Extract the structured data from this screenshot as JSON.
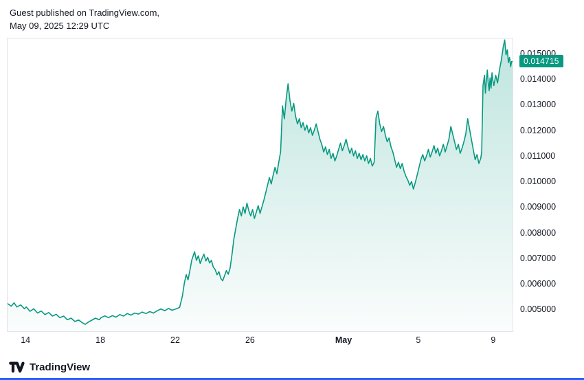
{
  "header": {
    "line1": "Guest published on TradingView.com,",
    "line2": "May 09, 2025 12:29 UTC"
  },
  "footer": {
    "brand": "TradingView",
    "logo_icon": "tradingview-logo"
  },
  "accent_bottom_color": "#2962ff",
  "chart_data": {
    "type": "area",
    "title": "",
    "series_name": "price",
    "line_color": "#089981",
    "fill_top": "rgba(8,153,129,0.26)",
    "fill_bottom": "rgba(8,153,129,0.02)",
    "badge_color": "#089981",
    "last_price": 0.014715,
    "last_price_label": "0.014715",
    "grid": false,
    "legend": "none",
    "ylim": [
      0.00417,
      0.01562
    ],
    "xlim": [
      0,
      27
    ],
    "y_ticks": [
      {
        "value": 0.015,
        "label": "0.015000"
      },
      {
        "value": 0.014,
        "label": "0.014000"
      },
      {
        "value": 0.013,
        "label": "0.013000"
      },
      {
        "value": 0.012,
        "label": "0.012000"
      },
      {
        "value": 0.011,
        "label": "0.011000"
      },
      {
        "value": 0.01,
        "label": "0.010000"
      },
      {
        "value": 0.009,
        "label": "0.009000"
      },
      {
        "value": 0.008,
        "label": "0.008000"
      },
      {
        "value": 0.007,
        "label": "0.007000"
      },
      {
        "value": 0.006,
        "label": "0.006000"
      },
      {
        "value": 0.005,
        "label": "0.005000"
      }
    ],
    "x_ticks": [
      {
        "day": 1,
        "label": "14",
        "bold": false
      },
      {
        "day": 5,
        "label": "18",
        "bold": false
      },
      {
        "day": 9,
        "label": "22",
        "bold": false
      },
      {
        "day": 13,
        "label": "26",
        "bold": false
      },
      {
        "day": 18,
        "label": "May",
        "bold": true
      },
      {
        "day": 22,
        "label": "5",
        "bold": false
      },
      {
        "day": 26,
        "label": "9",
        "bold": false
      }
    ],
    "points": [
      [
        0,
        0.00525
      ],
      [
        0.2,
        0.00515
      ],
      [
        0.35,
        0.00528
      ],
      [
        0.5,
        0.00512
      ],
      [
        0.7,
        0.0052
      ],
      [
        0.9,
        0.00505
      ],
      [
        1,
        0.00512
      ],
      [
        1.2,
        0.00495
      ],
      [
        1.4,
        0.00505
      ],
      [
        1.6,
        0.00488
      ],
      [
        1.8,
        0.00496
      ],
      [
        2,
        0.00482
      ],
      [
        2.2,
        0.0049
      ],
      [
        2.4,
        0.00476
      ],
      [
        2.6,
        0.00483
      ],
      [
        2.8,
        0.0047
      ],
      [
        3,
        0.00476
      ],
      [
        3.2,
        0.00462
      ],
      [
        3.4,
        0.00468
      ],
      [
        3.6,
        0.00455
      ],
      [
        3.8,
        0.00461
      ],
      [
        4,
        0.0045
      ],
      [
        4.15,
        0.00444
      ],
      [
        4.3,
        0.00452
      ],
      [
        4.5,
        0.0046
      ],
      [
        4.7,
        0.00468
      ],
      [
        4.9,
        0.00462
      ],
      [
        5,
        0.0047
      ],
      [
        5.2,
        0.00477
      ],
      [
        5.4,
        0.0047
      ],
      [
        5.6,
        0.00478
      ],
      [
        5.8,
        0.00472
      ],
      [
        6,
        0.00482
      ],
      [
        6.2,
        0.00476
      ],
      [
        6.4,
        0.00486
      ],
      [
        6.6,
        0.0048
      ],
      [
        6.8,
        0.00488
      ],
      [
        7,
        0.00484
      ],
      [
        7.2,
        0.00492
      ],
      [
        7.4,
        0.00486
      ],
      [
        7.6,
        0.00494
      ],
      [
        7.8,
        0.00488
      ],
      [
        8,
        0.00497
      ],
      [
        8.2,
        0.00504
      ],
      [
        8.4,
        0.00497
      ],
      [
        8.6,
        0.00506
      ],
      [
        8.8,
        0.00499
      ],
      [
        9,
        0.00504
      ],
      [
        9.2,
        0.0051
      ],
      [
        9.35,
        0.00555
      ],
      [
        9.45,
        0.00605
      ],
      [
        9.55,
        0.00638
      ],
      [
        9.65,
        0.00618
      ],
      [
        9.75,
        0.00655
      ],
      [
        9.85,
        0.00695
      ],
      [
        10,
        0.00728
      ],
      [
        10.1,
        0.00694
      ],
      [
        10.2,
        0.00712
      ],
      [
        10.3,
        0.00682
      ],
      [
        10.4,
        0.00702
      ],
      [
        10.5,
        0.00718
      ],
      [
        10.6,
        0.00692
      ],
      [
        10.7,
        0.00706
      ],
      [
        10.8,
        0.00684
      ],
      [
        10.9,
        0.00694
      ],
      [
        11,
        0.00668
      ],
      [
        11.1,
        0.00658
      ],
      [
        11.2,
        0.00638
      ],
      [
        11.3,
        0.0065
      ],
      [
        11.4,
        0.00624
      ],
      [
        11.5,
        0.00614
      ],
      [
        11.6,
        0.00634
      ],
      [
        11.7,
        0.00654
      ],
      [
        11.8,
        0.0064
      ],
      [
        11.9,
        0.00664
      ],
      [
        12,
        0.00718
      ],
      [
        12.1,
        0.00778
      ],
      [
        12.2,
        0.00818
      ],
      [
        12.3,
        0.00858
      ],
      [
        12.4,
        0.00893
      ],
      [
        12.5,
        0.00868
      ],
      [
        12.6,
        0.00903
      ],
      [
        12.7,
        0.00878
      ],
      [
        12.8,
        0.00918
      ],
      [
        12.9,
        0.00888
      ],
      [
        13,
        0.00868
      ],
      [
        13.1,
        0.00893
      ],
      [
        13.2,
        0.00858
      ],
      [
        13.3,
        0.00883
      ],
      [
        13.4,
        0.00908
      ],
      [
        13.5,
        0.00878
      ],
      [
        13.6,
        0.00903
      ],
      [
        13.7,
        0.00928
      ],
      [
        13.8,
        0.00958
      ],
      [
        13.9,
        0.00988
      ],
      [
        14,
        0.01018
      ],
      [
        14.1,
        0.00993
      ],
      [
        14.2,
        0.01028
      ],
      [
        14.3,
        0.01058
      ],
      [
        14.4,
        0.01033
      ],
      [
        14.5,
        0.01078
      ],
      [
        14.6,
        0.01118
      ],
      [
        14.7,
        0.01298
      ],
      [
        14.8,
        0.01248
      ],
      [
        14.9,
        0.01328
      ],
      [
        15,
        0.01385
      ],
      [
        15.1,
        0.01318
      ],
      [
        15.2,
        0.01278
      ],
      [
        15.3,
        0.01308
      ],
      [
        15.4,
        0.01258
      ],
      [
        15.5,
        0.01228
      ],
      [
        15.6,
        0.01248
      ],
      [
        15.7,
        0.01213
      ],
      [
        15.8,
        0.01233
      ],
      [
        15.9,
        0.01203
      ],
      [
        16,
        0.01223
      ],
      [
        16.1,
        0.01193
      ],
      [
        16.2,
        0.01213
      ],
      [
        16.3,
        0.01183
      ],
      [
        16.4,
        0.01203
      ],
      [
        16.5,
        0.01228
      ],
      [
        16.6,
        0.01198
      ],
      [
        16.7,
        0.01168
      ],
      [
        16.8,
        0.01148
      ],
      [
        16.9,
        0.01118
      ],
      [
        17,
        0.01138
      ],
      [
        17.1,
        0.01108
      ],
      [
        17.2,
        0.01128
      ],
      [
        17.3,
        0.01093
      ],
      [
        17.4,
        0.01113
      ],
      [
        17.5,
        0.01083
      ],
      [
        17.6,
        0.01103
      ],
      [
        17.7,
        0.01128
      ],
      [
        17.8,
        0.01153
      ],
      [
        17.9,
        0.01123
      ],
      [
        18,
        0.01143
      ],
      [
        18.1,
        0.01168
      ],
      [
        18.2,
        0.01138
      ],
      [
        18.3,
        0.01113
      ],
      [
        18.4,
        0.01133
      ],
      [
        18.5,
        0.01103
      ],
      [
        18.6,
        0.01123
      ],
      [
        18.7,
        0.01093
      ],
      [
        18.8,
        0.01113
      ],
      [
        18.9,
        0.01088
      ],
      [
        19,
        0.01108
      ],
      [
        19.1,
        0.01083
      ],
      [
        19.2,
        0.01103
      ],
      [
        19.3,
        0.01073
      ],
      [
        19.4,
        0.01093
      ],
      [
        19.5,
        0.01063
      ],
      [
        19.6,
        0.01078
      ],
      [
        19.7,
        0.01252
      ],
      [
        19.8,
        0.01278
      ],
      [
        19.9,
        0.01228
      ],
      [
        20,
        0.01198
      ],
      [
        20.1,
        0.01218
      ],
      [
        20.2,
        0.01183
      ],
      [
        20.3,
        0.01158
      ],
      [
        20.4,
        0.01173
      ],
      [
        20.5,
        0.01138
      ],
      [
        20.6,
        0.01118
      ],
      [
        20.7,
        0.01088
      ],
      [
        20.8,
        0.01058
      ],
      [
        20.9,
        0.01078
      ],
      [
        21,
        0.01053
      ],
      [
        21.1,
        0.01073
      ],
      [
        21.2,
        0.01043
      ],
      [
        21.3,
        0.01023
      ],
      [
        21.4,
        0.01008
      ],
      [
        21.5,
        0.00988
      ],
      [
        21.6,
        0.01003
      ],
      [
        21.7,
        0.00973
      ],
      [
        21.8,
        0.00998
      ],
      [
        21.9,
        0.01028
      ],
      [
        22,
        0.01058
      ],
      [
        22.1,
        0.01088
      ],
      [
        22.2,
        0.01108
      ],
      [
        22.3,
        0.01083
      ],
      [
        22.4,
        0.01103
      ],
      [
        22.5,
        0.01128
      ],
      [
        22.6,
        0.01098
      ],
      [
        22.7,
        0.01118
      ],
      [
        22.8,
        0.01143
      ],
      [
        22.9,
        0.01113
      ],
      [
        23,
        0.01133
      ],
      [
        23.1,
        0.01103
      ],
      [
        23.2,
        0.01123
      ],
      [
        23.3,
        0.01148
      ],
      [
        23.4,
        0.01118
      ],
      [
        23.5,
        0.01143
      ],
      [
        23.6,
        0.01168
      ],
      [
        23.7,
        0.01218
      ],
      [
        23.8,
        0.01188
      ],
      [
        23.9,
        0.01158
      ],
      [
        24,
        0.01128
      ],
      [
        24.1,
        0.01148
      ],
      [
        24.2,
        0.01113
      ],
      [
        24.3,
        0.01133
      ],
      [
        24.4,
        0.01158
      ],
      [
        24.5,
        0.01188
      ],
      [
        24.6,
        0.01248
      ],
      [
        24.7,
        0.01208
      ],
      [
        24.8,
        0.01168
      ],
      [
        24.9,
        0.01128
      ],
      [
        25,
        0.01088
      ],
      [
        25.1,
        0.01108
      ],
      [
        25.2,
        0.01073
      ],
      [
        25.3,
        0.01093
      ],
      [
        25.35,
        0.01118
      ],
      [
        25.42,
        0.01378
      ],
      [
        25.5,
        0.01418
      ],
      [
        25.55,
        0.01348
      ],
      [
        25.6,
        0.01398
      ],
      [
        25.65,
        0.01438
      ],
      [
        25.7,
        0.01388
      ],
      [
        25.75,
        0.01358
      ],
      [
        25.8,
        0.01408
      ],
      [
        25.85,
        0.01368
      ],
      [
        25.9,
        0.01428
      ],
      [
        25.95,
        0.01398
      ],
      [
        26,
        0.01378
      ],
      [
        26.1,
        0.01418
      ],
      [
        26.2,
        0.01388
      ],
      [
        26.3,
        0.01438
      ],
      [
        26.4,
        0.01478
      ],
      [
        26.5,
        0.01528
      ],
      [
        26.58,
        0.01556
      ],
      [
        26.65,
        0.01498
      ],
      [
        26.72,
        0.01518
      ],
      [
        26.78,
        0.01468
      ],
      [
        26.84,
        0.01488
      ],
      [
        26.9,
        0.01452
      ],
      [
        26.95,
        0.01472
      ],
      [
        27,
        0.014715
      ]
    ]
  }
}
